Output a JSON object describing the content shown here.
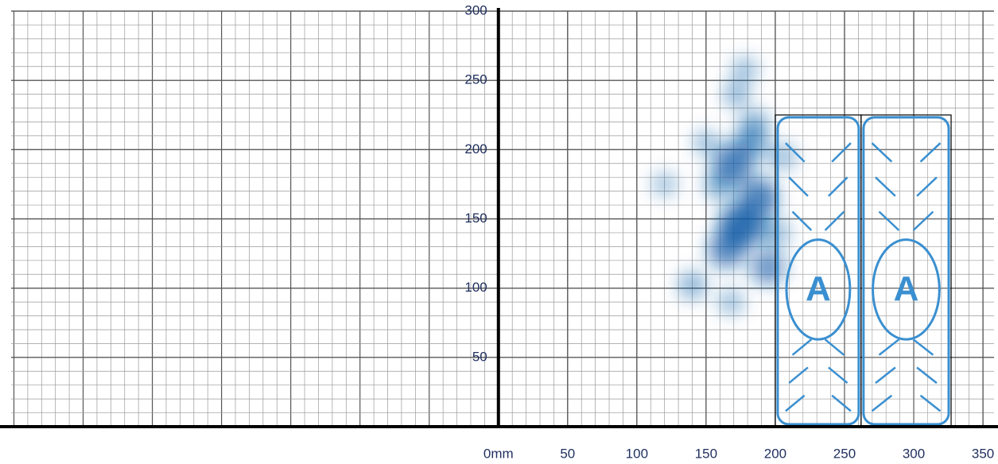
{
  "chart_data": {
    "type": "heatmap",
    "xlim": [
      -352,
      358
    ],
    "ylim": [
      0,
      300
    ],
    "xticks": [
      {
        "value": 0,
        "label": "0mm"
      },
      50,
      100,
      150,
      200,
      250,
      300,
      350
    ],
    "yticks": [
      50,
      100,
      150,
      200,
      250,
      300
    ],
    "grid": true,
    "color": "#0b5aa6",
    "x": [
      175,
      170,
      188,
      165,
      195,
      182,
      160,
      140,
      172,
      178,
      185,
      120,
      150,
      205,
      200,
      168
    ],
    "y": [
      145,
      190,
      165,
      128,
      115,
      205,
      175,
      102,
      240,
      258,
      218,
      175,
      205,
      195,
      140,
      90
    ],
    "weights": [
      1.0,
      0.8,
      0.8,
      0.7,
      0.6,
      0.5,
      0.4,
      0.3,
      0.25,
      0.2,
      0.35,
      0.15,
      0.2,
      0.3,
      0.35,
      0.2
    ],
    "pads": [
      {
        "label": "A",
        "xlim": [
          200,
          262
        ],
        "ylim": [
          0,
          225
        ]
      },
      {
        "label": "A",
        "xlim": [
          262,
          327
        ],
        "ylim": [
          0,
          225
        ]
      }
    ],
    "pad_color": "#3a8fd0"
  }
}
